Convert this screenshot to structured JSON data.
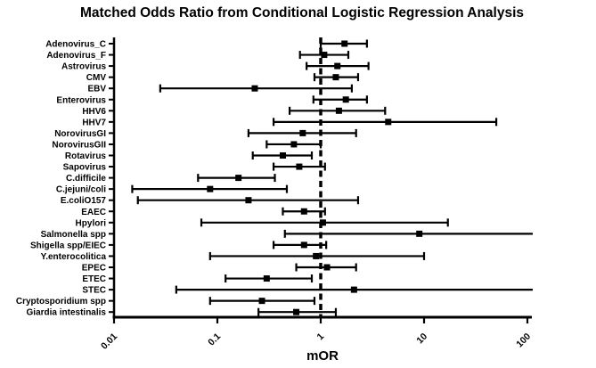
{
  "figure": {
    "background_color": "#ffffff",
    "ink_color": "#000000"
  },
  "chart_data": {
    "type": "scatter",
    "variant": "forest-plot",
    "title": "Matched Odds Ratio from Conditional Logistic Regression Analysis",
    "xlabel": "mOR",
    "x_scale": "log",
    "xlim": [
      0.01,
      100
    ],
    "x_ticks": [
      0.01,
      0.1,
      1,
      10,
      100
    ],
    "x_tick_labels": [
      "0.01",
      "0.1",
      "1",
      "10",
      "100"
    ],
    "reference_line_x": 1,
    "grid": false,
    "legend": "none",
    "marker": "filled-square",
    "rows": [
      {
        "label": "Adenovirus_C",
        "mor": 1.7,
        "ci_low": 1.0,
        "ci_high": 2.8
      },
      {
        "label": "Adenovirus_F",
        "mor": 1.08,
        "ci_low": 0.63,
        "ci_high": 1.85
      },
      {
        "label": "Astrovirus",
        "mor": 1.45,
        "ci_low": 0.73,
        "ci_high": 2.9
      },
      {
        "label": "CMV",
        "mor": 1.4,
        "ci_low": 0.87,
        "ci_high": 2.3
      },
      {
        "label": "EBV",
        "mor": 0.23,
        "ci_low": 0.028,
        "ci_high": 2.0
      },
      {
        "label": "Enterovirus",
        "mor": 1.75,
        "ci_low": 0.85,
        "ci_high": 2.8
      },
      {
        "label": "HHV6",
        "mor": 1.5,
        "ci_low": 0.5,
        "ci_high": 4.2
      },
      {
        "label": "HHV7",
        "mor": 4.5,
        "ci_low": 0.35,
        "ci_high": 50
      },
      {
        "label": "NorovirusGI",
        "mor": 0.67,
        "ci_low": 0.2,
        "ci_high": 2.2
      },
      {
        "label": "NorovirusGII",
        "mor": 0.55,
        "ci_low": 0.3,
        "ci_high": 1.0
      },
      {
        "label": "Rotavirus",
        "mor": 0.43,
        "ci_low": 0.22,
        "ci_high": 0.82
      },
      {
        "label": "Sapovirus",
        "mor": 0.62,
        "ci_low": 0.35,
        "ci_high": 1.1
      },
      {
        "label": "C.difficile",
        "mor": 0.16,
        "ci_low": 0.065,
        "ci_high": 0.36
      },
      {
        "label": "C.jejuni/coli",
        "mor": 0.085,
        "ci_low": 0.015,
        "ci_high": 0.47
      },
      {
        "label": "E.coliO157",
        "mor": 0.2,
        "ci_low": 0.017,
        "ci_high": 2.3
      },
      {
        "label": "EAEC",
        "mor": 0.69,
        "ci_low": 0.43,
        "ci_high": 1.1
      },
      {
        "label": "Hpylori",
        "mor": 1.05,
        "ci_low": 0.07,
        "ci_high": 17
      },
      {
        "label": "Salmonella spp",
        "mor": 9.0,
        "ci_low": 0.45,
        "ci_high": 100,
        "ci_high_truncated": true
      },
      {
        "label": "Shigella spp/EIEC",
        "mor": 0.69,
        "ci_low": 0.35,
        "ci_high": 1.13
      },
      {
        "label": "Y.enterocolitica",
        "mor": 0.9,
        "ci_low": 0.085,
        "ci_high": 10
      },
      {
        "label": "EPEC",
        "mor": 1.15,
        "ci_low": 0.58,
        "ci_high": 2.2
      },
      {
        "label": "ETEC",
        "mor": 0.3,
        "ci_low": 0.12,
        "ci_high": 0.82
      },
      {
        "label": "STEC",
        "mor": 2.1,
        "ci_low": 0.04,
        "ci_high": 100,
        "ci_high_truncated": true
      },
      {
        "label": "Cryptosporidium spp",
        "mor": 0.27,
        "ci_low": 0.085,
        "ci_high": 0.87
      },
      {
        "label": "Giardia intestinalis",
        "mor": 0.58,
        "ci_low": 0.25,
        "ci_high": 1.4
      }
    ]
  }
}
